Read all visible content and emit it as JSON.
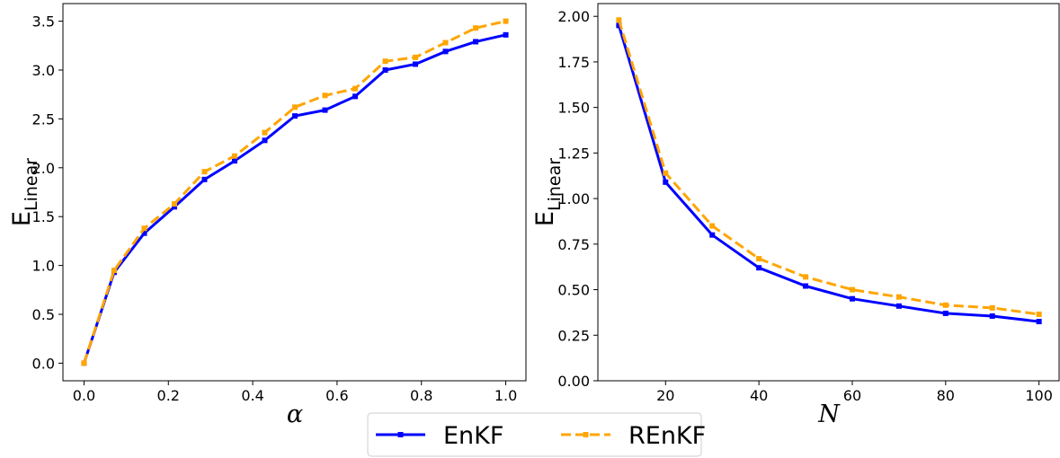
{
  "chart_data": [
    {
      "type": "line",
      "xlabel": "α",
      "ylabel": {
        "main": "E",
        "sub": "Linear"
      },
      "xlim": [
        -0.05,
        1.05
      ],
      "ylim": [
        -0.18,
        3.68
      ],
      "xticks": [
        0.0,
        0.2,
        0.4,
        0.6,
        0.8,
        1.0
      ],
      "xtick_labels": [
        "0.0",
        "0.2",
        "0.4",
        "0.6",
        "0.8",
        "1.0"
      ],
      "yticks": [
        0.0,
        0.5,
        1.0,
        1.5,
        2.0,
        2.5,
        3.0,
        3.5
      ],
      "ytick_labels": [
        "0.0",
        "0.5",
        "1.0",
        "1.5",
        "2.0",
        "2.5",
        "3.0",
        "3.5"
      ],
      "grid": false,
      "x": [
        0.0,
        0.0714,
        0.1429,
        0.2143,
        0.2857,
        0.3571,
        0.4286,
        0.5,
        0.5714,
        0.6429,
        0.7143,
        0.7857,
        0.8571,
        0.9286,
        1.0
      ],
      "series": [
        {
          "name": "EnKF",
          "color": "#0000ff",
          "style": "solid",
          "values": [
            0.0,
            0.93,
            1.33,
            1.6,
            1.88,
            2.07,
            2.28,
            2.53,
            2.59,
            2.73,
            3.0,
            3.06,
            3.19,
            3.29,
            3.36
          ]
        },
        {
          "name": "REnKF",
          "color": "#ffa500",
          "style": "dashed",
          "values": [
            0.0,
            0.95,
            1.38,
            1.63,
            1.96,
            2.12,
            2.36,
            2.62,
            2.74,
            2.81,
            3.09,
            3.13,
            3.28,
            3.43,
            3.5
          ]
        }
      ]
    },
    {
      "type": "line",
      "xlabel": "N",
      "ylabel": {
        "main": "E",
        "sub": "Linear"
      },
      "xlim": [
        5.5,
        104.5
      ],
      "ylim": [
        0.0,
        2.07
      ],
      "xticks": [
        20,
        40,
        60,
        80,
        100
      ],
      "xtick_labels": [
        "20",
        "40",
        "60",
        "80",
        "100"
      ],
      "yticks": [
        0.0,
        0.25,
        0.5,
        0.75,
        1.0,
        1.25,
        1.5,
        1.75,
        2.0
      ],
      "ytick_labels": [
        "0.00",
        "0.25",
        "0.50",
        "0.75",
        "1.00",
        "1.25",
        "1.50",
        "1.75",
        "2.00"
      ],
      "grid": false,
      "x": [
        10,
        20,
        30,
        40,
        50,
        60,
        70,
        80,
        90,
        100
      ],
      "series": [
        {
          "name": "EnKF",
          "color": "#0000ff",
          "style": "solid",
          "values": [
            1.95,
            1.09,
            0.8,
            0.62,
            0.52,
            0.45,
            0.41,
            0.37,
            0.355,
            0.325
          ]
        },
        {
          "name": "REnKF",
          "color": "#ffa500",
          "style": "dashed",
          "values": [
            1.98,
            1.14,
            0.85,
            0.67,
            0.57,
            0.5,
            0.46,
            0.415,
            0.4,
            0.365
          ]
        }
      ]
    }
  ],
  "legend": {
    "placement": "bottom-center",
    "entries": [
      {
        "label": "EnKF",
        "color": "#0000ff",
        "style": "solid"
      },
      {
        "label": "REnKF",
        "color": "#ffa500",
        "style": "dashed"
      }
    ]
  }
}
